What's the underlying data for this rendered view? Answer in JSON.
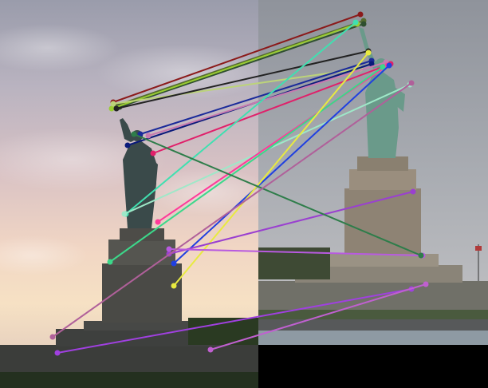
{
  "composite": {
    "background": "#000000",
    "left_photo": {
      "subject": "statue-of-liberty-sunset"
    },
    "right_photo": {
      "subject": "statue-of-liberty-overcast"
    }
  },
  "matches": [
    {
      "a": [
        142,
        128
      ],
      "b": [
        452,
        18
      ],
      "color": "#8b1a1a"
    },
    {
      "a": [
        146,
        132
      ],
      "b": [
        456,
        26
      ],
      "color": "#556b2f"
    },
    {
      "a": [
        150,
        134
      ],
      "b": [
        456,
        30
      ],
      "color": "#2f4f2f"
    },
    {
      "a": [
        140,
        136
      ],
      "b": [
        448,
        30
      ],
      "color": "#9acd32"
    },
    {
      "a": [
        142,
        130
      ],
      "b": [
        452,
        86
      ],
      "color": "#bcd37a"
    },
    {
      "a": [
        146,
        136
      ],
      "b": [
        462,
        64
      ],
      "color": "#222222"
    },
    {
      "a": [
        176,
        168
      ],
      "b": [
        466,
        76
      ],
      "color": "#1a2a9a"
    },
    {
      "a": [
        160,
        182
      ],
      "b": [
        466,
        80
      ],
      "color": "#0a1a7a"
    },
    {
      "a": [
        186,
        170
      ],
      "b": [
        484,
        78
      ],
      "color": "#c77ab0"
    },
    {
      "a": [
        192,
        192
      ],
      "b": [
        490,
        80
      ],
      "color": "#e0206a"
    },
    {
      "a": [
        158,
        268
      ],
      "b": [
        446,
        28
      ],
      "color": "#40e0b0"
    },
    {
      "a": [
        156,
        268
      ],
      "b": [
        514,
        106
      ],
      "color": "#9ee8c8"
    },
    {
      "a": [
        198,
        278
      ],
      "b": [
        486,
        82
      ],
      "color": "#ff3a9a"
    },
    {
      "a": [
        138,
        328
      ],
      "b": [
        480,
        84
      ],
      "color": "#3cd88a"
    },
    {
      "a": [
        218,
        330
      ],
      "b": [
        488,
        82
      ],
      "color": "#2040e0"
    },
    {
      "a": [
        218,
        358
      ],
      "b": [
        462,
        66
      ],
      "color": "#e8ea40"
    },
    {
      "a": [
        212,
        318
      ],
      "b": [
        518,
        240
      ],
      "color": "#9a40d0"
    },
    {
      "a": [
        212,
        312
      ],
      "b": [
        530,
        320
      ],
      "color": "#b85ae0"
    },
    {
      "a": [
        168,
        168
      ],
      "b": [
        528,
        320
      ],
      "color": "#2e7d4a"
    },
    {
      "a": [
        66,
        422
      ],
      "b": [
        516,
        104
      ],
      "color": "#b0609a"
    },
    {
      "a": [
        72,
        442
      ],
      "b": [
        516,
        362
      ],
      "color": "#a040e0"
    },
    {
      "a": [
        264,
        438
      ],
      "b": [
        534,
        356
      ],
      "color": "#c060d0"
    }
  ]
}
